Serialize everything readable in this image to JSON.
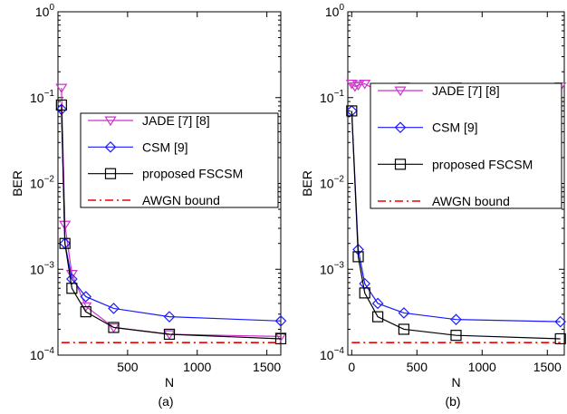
{
  "chart_data": [
    {
      "type": "line",
      "panel_label": "(a)",
      "xlabel": "N",
      "ylabel": "BER",
      "yscale": "log",
      "xlim": [
        0,
        1600
      ],
      "ylim": [
        0.0001,
        1
      ],
      "xticks": [
        500,
        1000,
        1500
      ],
      "yticks": [
        {
          "value": 0.0001,
          "base": "10",
          "exp": "−4"
        },
        {
          "value": 0.001,
          "base": "10",
          "exp": "−3"
        },
        {
          "value": 0.01,
          "base": "10",
          "exp": "−2"
        },
        {
          "value": 0.1,
          "base": "10",
          "exp": "−1"
        },
        {
          "value": 1,
          "base": "10",
          "exp": "0"
        }
      ],
      "legend_position": "center-right",
      "series": [
        {
          "name": "JADE [7] [8]",
          "color": "#cc33cc",
          "marker": "triangle-down",
          "line": "solid",
          "x": [
            25,
            50,
            100,
            200,
            400,
            800,
            1600
          ],
          "y": [
            0.13,
            0.0033,
            0.00088,
            0.00037,
            0.00021,
            0.000175,
            0.000165
          ]
        },
        {
          "name": "CSM [9]",
          "color": "#1a1aff",
          "marker": "diamond",
          "line": "solid",
          "x": [
            25,
            50,
            100,
            200,
            400,
            800,
            1600
          ],
          "y": [
            0.073,
            0.002,
            0.00077,
            0.00048,
            0.00035,
            0.00028,
            0.00025
          ]
        },
        {
          "name": "proposed FSCSM",
          "color": "#000000",
          "marker": "square",
          "line": "solid",
          "x": [
            25,
            50,
            100,
            200,
            400,
            800,
            1600
          ],
          "y": [
            0.082,
            0.002,
            0.0006,
            0.00032,
            0.00021,
            0.000175,
            0.000155
          ]
        },
        {
          "name": "AWGN bound",
          "color": "#ee0000",
          "marker": "none",
          "line": "dashdot",
          "x": [
            25,
            1600
          ],
          "y": [
            0.00014,
            0.00014
          ]
        }
      ]
    },
    {
      "type": "line",
      "panel_label": "(b)",
      "xlabel": "N",
      "ylabel": "BER",
      "yscale": "log",
      "xlim": [
        -30,
        1630
      ],
      "ylim": [
        0.0001,
        1
      ],
      "xticks": [
        0,
        500,
        1000,
        1500
      ],
      "yticks": [
        {
          "value": 0.0001,
          "base": "10",
          "exp": "−4"
        },
        {
          "value": 0.001,
          "base": "10",
          "exp": "−3"
        },
        {
          "value": 0.01,
          "base": "10",
          "exp": "−2"
        },
        {
          "value": 0.1,
          "base": "10",
          "exp": "−1"
        },
        {
          "value": 1,
          "base": "10",
          "exp": "0"
        }
      ],
      "legend_position": "top-right",
      "series": [
        {
          "name": "JADE [7] [8]",
          "color": "#cc33cc",
          "marker": "triangle-down",
          "line": "solid",
          "x": [
            0,
            25,
            50,
            100,
            200,
            400,
            800,
            1600
          ],
          "y": [
            0.145,
            0.135,
            0.14,
            0.145,
            0.12,
            0.135,
            0.135,
            0.135
          ]
        },
        {
          "name": "CSM [9]",
          "color": "#1a1aff",
          "marker": "diamond",
          "line": "solid",
          "x": [
            0,
            50,
            100,
            200,
            400,
            800,
            1600
          ],
          "y": [
            0.07,
            0.0017,
            0.00068,
            0.0004,
            0.00031,
            0.00026,
            0.000245
          ]
        },
        {
          "name": "proposed FSCSM",
          "color": "#000000",
          "marker": "square",
          "line": "solid",
          "x": [
            0,
            50,
            100,
            200,
            400,
            800,
            1600
          ],
          "y": [
            0.07,
            0.0014,
            0.00053,
            0.00028,
            0.0002,
            0.00017,
            0.000155
          ]
        },
        {
          "name": "AWGN bound",
          "color": "#ee0000",
          "marker": "none",
          "line": "dashdot",
          "x": [
            0,
            1600
          ],
          "y": [
            0.00014,
            0.00014
          ]
        }
      ]
    }
  ]
}
